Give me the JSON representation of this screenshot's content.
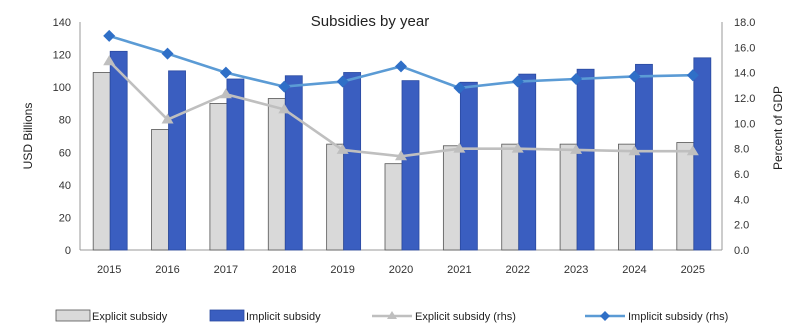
{
  "chart_data": {
    "type": "bar",
    "title": "Subsidies by year",
    "categories": [
      "2015",
      "2016",
      "2017",
      "2018",
      "2019",
      "2020",
      "2021",
      "2022",
      "2023",
      "2024",
      "2025"
    ],
    "ylabel": "USD Billions",
    "ylabel_right": "Percent of GDP",
    "ylim": [
      0,
      140
    ],
    "ylim_right": [
      0,
      18
    ],
    "yticks": [
      "0",
      "20",
      "40",
      "60",
      "80",
      "100",
      "120",
      "140"
    ],
    "yticks_right": [
      "0.0",
      "2.0",
      "4.0",
      "6.0",
      "8.0",
      "10.0",
      "12.0",
      "14.0",
      "16.0",
      "18.0"
    ],
    "grid": false,
    "legend_position": "bottom",
    "series": [
      {
        "name": "Explicit subsidy",
        "kind": "bar",
        "axis": "left",
        "color": "#d9d9d9",
        "values": [
          109,
          74,
          90,
          93,
          65,
          53,
          64,
          65,
          65,
          65,
          66
        ]
      },
      {
        "name": "Implicit subsidy",
        "kind": "bar",
        "axis": "left",
        "color": "#3a5ec0",
        "values": [
          122,
          110,
          105,
          107,
          109,
          104,
          103,
          108,
          111,
          114,
          118
        ]
      },
      {
        "name": "Explicit subsidy (rhs)",
        "kind": "line",
        "axis": "right",
        "color": "#bfbfbf",
        "marker": "triangle",
        "values": [
          14.9,
          10.3,
          12.3,
          11.1,
          7.9,
          7.4,
          8.0,
          8.0,
          7.9,
          7.8,
          7.8
        ]
      },
      {
        "name": "Implicit subsidy (rhs)",
        "kind": "line",
        "axis": "right",
        "color": "#5b9bd5",
        "marker": "diamond",
        "values": [
          16.9,
          15.5,
          14.0,
          12.9,
          13.3,
          14.5,
          12.8,
          13.3,
          13.5,
          13.7,
          13.8
        ]
      }
    ]
  }
}
